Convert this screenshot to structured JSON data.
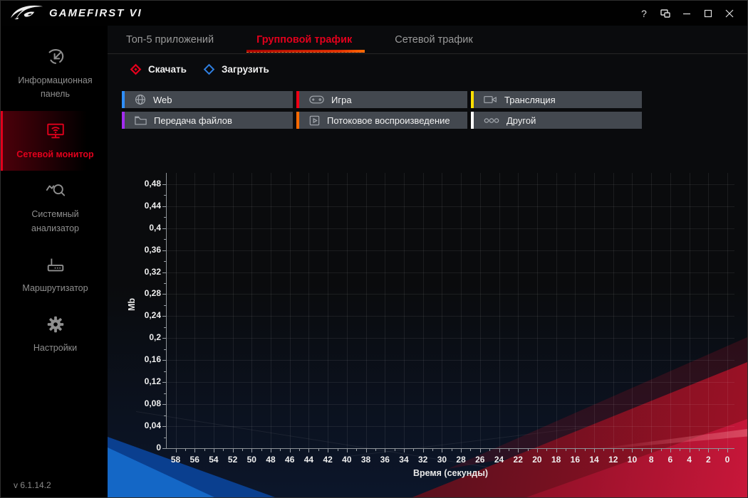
{
  "window": {
    "app_title": "GAMEFIRST VI",
    "controls": {
      "help": "?"
    }
  },
  "sidebar": {
    "items": [
      {
        "label": "Информационная панель",
        "icon": "dashboard-icon",
        "active": false
      },
      {
        "label": "Сетевой монитор",
        "icon": "network-monitor-icon",
        "active": true
      },
      {
        "label": "Системный анализатор",
        "icon": "system-analyzer-icon",
        "active": false
      },
      {
        "label": "Маршрутизатор",
        "icon": "router-icon",
        "active": false
      },
      {
        "label": "Настройки",
        "icon": "settings-icon",
        "active": false
      }
    ],
    "version": "v 6.1.14.2"
  },
  "tabs": [
    {
      "label": "Топ-5 приложений",
      "active": false
    },
    {
      "label": "Групповой трафик",
      "active": true
    },
    {
      "label": "Сетевой трафик",
      "active": false
    }
  ],
  "legend": [
    {
      "label": "Скачать",
      "color": "#e2001c",
      "style": "filled"
    },
    {
      "label": "Загрузить",
      "color": "#2f7fe0",
      "style": "outline"
    }
  ],
  "categories": [
    {
      "label": "Web",
      "color": "#2f8fff",
      "icon": "globe-icon"
    },
    {
      "label": "Игра",
      "color": "#f00014",
      "icon": "gamepad-icon"
    },
    {
      "label": "Трансляция",
      "color": "#ffe000",
      "icon": "broadcast-icon"
    },
    {
      "label": "Передача файлов",
      "color": "#a32cf0",
      "icon": "folder-icon"
    },
    {
      "label": "Потоковое воспроизведение",
      "color": "#ff6a00",
      "icon": "streaming-icon"
    },
    {
      "label": "Другой",
      "color": "#ffffff",
      "icon": "other-icon"
    }
  ],
  "chart_data": {
    "type": "line",
    "title": "",
    "xlabel": "Время (секунды)",
    "ylabel": "Mb",
    "x_ticks": [
      "58",
      "56",
      "54",
      "52",
      "50",
      "48",
      "46",
      "44",
      "42",
      "40",
      "38",
      "36",
      "34",
      "32",
      "30",
      "28",
      "26",
      "24",
      "22",
      "20",
      "18",
      "16",
      "14",
      "12",
      "10",
      "8",
      "6",
      "4",
      "2",
      "0"
    ],
    "y_ticks": [
      "0",
      "0,04",
      "0,08",
      "0,12",
      "0,16",
      "0,2",
      "0,24",
      "0,28",
      "0,32",
      "0,36",
      "0,4",
      "0,44",
      "0,48"
    ],
    "xlim": [
      60,
      0
    ],
    "ylim": [
      0,
      0.5
    ],
    "grid": true,
    "legend_position": "top-left",
    "series": [
      {
        "name": "Скачать",
        "color": "#e2001c",
        "values": []
      },
      {
        "name": "Загрузить",
        "color": "#2f7fe0",
        "values": []
      }
    ]
  }
}
